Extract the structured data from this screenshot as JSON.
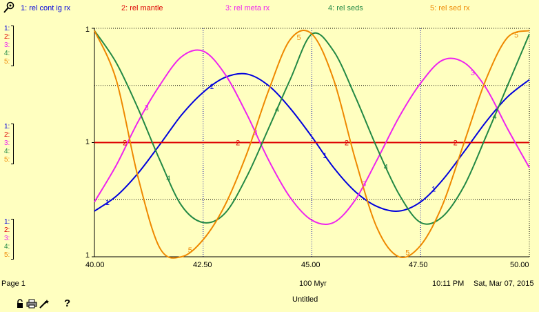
{
  "chart_data": {
    "type": "line",
    "title": "",
    "xlabel": "100 Myr",
    "ylabel": "",
    "xlim": [
      40.0,
      50.0
    ],
    "x_ticks": [
      "40.00",
      "42.50",
      "45.00",
      "47.50",
      "50.00"
    ],
    "y_tick_labels": [
      "1",
      "1",
      "1"
    ],
    "grid": true,
    "legend_position": "top",
    "series": [
      {
        "id": "1",
        "name": "rel cont ig rx",
        "color": "#0000dd",
        "x": [
          40.0,
          40.5,
          41.0,
          41.5,
          42.0,
          42.5,
          43.0,
          43.5,
          44.0,
          44.5,
          45.0,
          45.5,
          46.0,
          46.5,
          47.0,
          47.5,
          48.0,
          48.5,
          49.0,
          49.5,
          50.0
        ],
        "y": [
          -0.6,
          -0.47,
          -0.27,
          -0.02,
          0.24,
          0.44,
          0.57,
          0.6,
          0.5,
          0.3,
          0.05,
          -0.22,
          -0.43,
          -0.56,
          -0.6,
          -0.52,
          -0.33,
          -0.08,
          0.18,
          0.4,
          0.55
        ]
      },
      {
        "id": "2",
        "name": "rel mantle",
        "color": "#dd0000",
        "x": [
          40.0,
          50.0
        ],
        "y": [
          0.0,
          0.0
        ]
      },
      {
        "id": "3",
        "name": "rel meta rx",
        "color": "#ee22ee",
        "x": [
          40.0,
          40.5,
          41.0,
          41.5,
          42.0,
          42.5,
          43.0,
          43.5,
          44.0,
          44.5,
          45.0,
          45.5,
          46.0,
          46.5,
          47.0,
          47.5,
          48.0,
          48.5,
          49.0,
          49.5,
          50.0
        ],
        "y": [
          -0.52,
          -0.2,
          0.18,
          0.5,
          0.75,
          0.8,
          0.6,
          0.25,
          -0.15,
          -0.48,
          -0.68,
          -0.7,
          -0.5,
          -0.15,
          0.22,
          0.52,
          0.72,
          0.7,
          0.48,
          0.12,
          -0.22
        ]
      },
      {
        "id": "4",
        "name": "rel seds",
        "color": "#228844",
        "x": [
          40.0,
          40.5,
          41.0,
          41.5,
          42.0,
          42.5,
          43.0,
          43.5,
          44.0,
          44.5,
          45.0,
          45.5,
          46.0,
          46.5,
          47.0,
          47.5,
          48.0,
          48.5,
          49.0,
          49.5,
          50.0
        ],
        "y": [
          0.98,
          0.7,
          0.3,
          -0.15,
          -0.55,
          -0.7,
          -0.62,
          -0.3,
          0.12,
          0.55,
          0.95,
          0.8,
          0.4,
          -0.05,
          -0.45,
          -0.7,
          -0.65,
          -0.38,
          0.05,
          0.5,
          0.95
        ]
      },
      {
        "id": "5",
        "name": "rel sed rx",
        "color": "#ee8800",
        "x": [
          40.0,
          40.5,
          41.0,
          41.5,
          42.0,
          42.5,
          43.0,
          43.5,
          44.0,
          44.5,
          45.0,
          45.5,
          46.0,
          46.5,
          47.0,
          47.5,
          48.0,
          48.5,
          49.0,
          49.5,
          50.0
        ],
        "y": [
          0.98,
          0.55,
          -0.3,
          -0.92,
          -1.0,
          -0.85,
          -0.55,
          -0.1,
          0.45,
          0.9,
          0.95,
          0.55,
          -0.15,
          -0.75,
          -1.0,
          -0.9,
          -0.55,
          0.0,
          0.55,
          0.92,
          0.98
        ]
      }
    ]
  },
  "legend": [
    {
      "id": "1",
      "label": "1: rel cont ig rx",
      "color": "#0000dd"
    },
    {
      "id": "2",
      "label": "2: rel mantle",
      "color": "#dd0000"
    },
    {
      "id": "3",
      "label": "3: rel meta rx",
      "color": "#ee22ee"
    },
    {
      "id": "4",
      "label": "4: rel seds",
      "color": "#228844"
    },
    {
      "id": "5",
      "label": "5: rel sed rx",
      "color": "#ee8800"
    }
  ],
  "scale_labels": [
    "1:",
    "2:",
    "3:",
    "4:",
    "5:"
  ],
  "footer": {
    "page": "Page 1",
    "units": "100 Myr",
    "time": "10:11 PM",
    "date": "Sat, Mar 07, 2015",
    "file_title": "Untitled",
    "help": "?"
  },
  "icons": [
    "graph-pad-icon",
    "lock-icon",
    "print-icon",
    "wand-icon",
    "help-icon"
  ]
}
